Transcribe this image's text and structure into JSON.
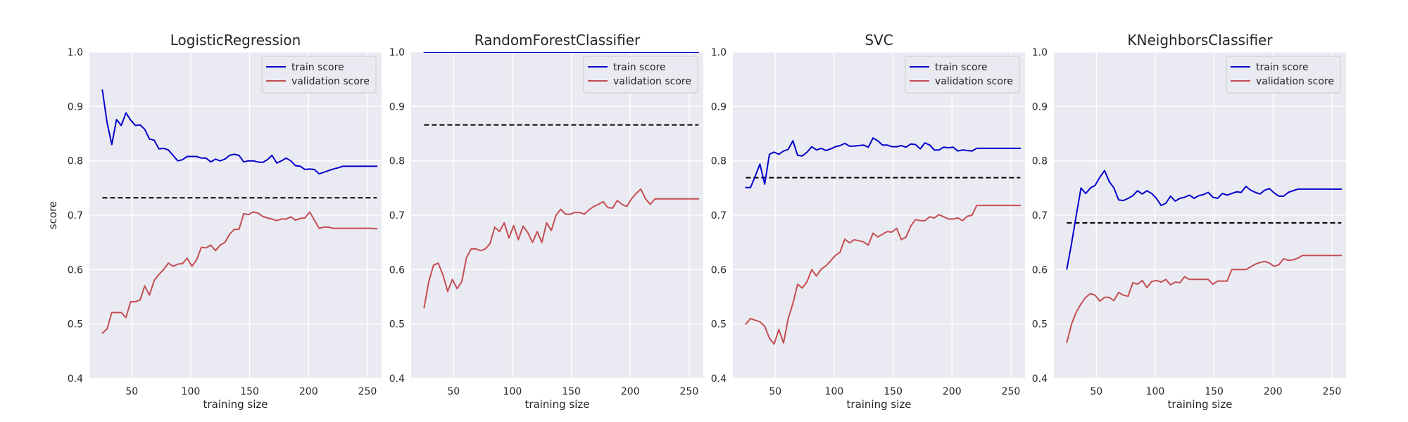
{
  "chart_data": [
    {
      "type": "line",
      "title": "LogisticRegression",
      "xlabel": "training size",
      "ylabel": "score",
      "xlim": [
        14,
        262
      ],
      "ylim": [
        0.4,
        1.0
      ],
      "xticks": [
        50,
        100,
        150,
        200,
        250
      ],
      "yticks": [
        0.4,
        0.5,
        0.6,
        0.7,
        0.8,
        0.9,
        1.0
      ],
      "legend_location": "upper-right",
      "grid": true,
      "reference_line": {
        "y": 0.732,
        "x_range": [
          25,
          258
        ],
        "style": "dashed",
        "color": "#000000"
      },
      "series": [
        {
          "name": "train score",
          "color": "#0000cc",
          "x": [
            25,
            29,
            33,
            37,
            41,
            45,
            49,
            53,
            57,
            61,
            65,
            69,
            73,
            77,
            81,
            85,
            89,
            93,
            97,
            101,
            105,
            109,
            113,
            117,
            121,
            125,
            129,
            133,
            137,
            141,
            145,
            149,
            153,
            157,
            161,
            165,
            169,
            173,
            177,
            181,
            185,
            189,
            193,
            197,
            201,
            205,
            209,
            213,
            217,
            221,
            225,
            229,
            233,
            237,
            241,
            245,
            249,
            253,
            258
          ],
          "y": [
            0.93,
            0.87,
            0.83,
            0.876,
            0.865,
            0.888,
            0.875,
            0.865,
            0.866,
            0.858,
            0.84,
            0.838,
            0.822,
            0.823,
            0.82,
            0.81,
            0.8,
            0.802,
            0.808,
            0.808,
            0.808,
            0.805,
            0.805,
            0.798,
            0.803,
            0.8,
            0.803,
            0.81,
            0.812,
            0.81,
            0.798,
            0.8,
            0.8,
            0.798,
            0.797,
            0.802,
            0.81,
            0.796,
            0.8,
            0.805,
            0.8,
            0.791,
            0.79,
            0.784,
            0.785,
            0.784,
            0.776,
            0.779,
            0.782,
            0.785,
            0.787,
            0.79,
            0.79,
            0.79,
            0.79,
            0.79,
            0.79,
            0.79,
            0.79
          ]
        },
        {
          "name": "validation score",
          "color": "#c44e52",
          "x": [
            25,
            29,
            33,
            37,
            41,
            45,
            49,
            53,
            57,
            61,
            65,
            69,
            73,
            77,
            81,
            85,
            89,
            93,
            97,
            101,
            105,
            109,
            113,
            117,
            121,
            125,
            129,
            133,
            137,
            141,
            145,
            149,
            153,
            157,
            161,
            165,
            169,
            173,
            177,
            181,
            185,
            189,
            193,
            197,
            201,
            205,
            209,
            213,
            217,
            221,
            225,
            229,
            233,
            237,
            241,
            245,
            249,
            253,
            258
          ],
          "y": [
            0.483,
            0.491,
            0.521,
            0.521,
            0.521,
            0.512,
            0.541,
            0.541,
            0.544,
            0.57,
            0.553,
            0.58,
            0.591,
            0.6,
            0.612,
            0.606,
            0.61,
            0.611,
            0.621,
            0.606,
            0.618,
            0.641,
            0.64,
            0.645,
            0.635,
            0.645,
            0.65,
            0.665,
            0.674,
            0.674,
            0.703,
            0.701,
            0.706,
            0.704,
            0.698,
            0.695,
            0.693,
            0.69,
            0.693,
            0.693,
            0.697,
            0.691,
            0.694,
            0.695,
            0.706,
            0.691,
            0.676,
            0.678,
            0.678,
            0.676,
            0.676,
            0.676,
            0.676,
            0.676,
            0.676,
            0.676,
            0.676,
            0.676,
            0.675
          ]
        }
      ]
    },
    {
      "type": "line",
      "title": "RandomForestClassifier",
      "xlabel": "training size",
      "ylabel": "",
      "xlim": [
        14,
        262
      ],
      "ylim": [
        0.4,
        1.0
      ],
      "xticks": [
        50,
        100,
        150,
        200,
        250
      ],
      "yticks": [
        0.4,
        0.5,
        0.6,
        0.7,
        0.8,
        0.9,
        1.0
      ],
      "legend_location": "upper-right",
      "grid": true,
      "reference_line": {
        "y": 0.866,
        "x_range": [
          25,
          258
        ],
        "style": "dashed",
        "color": "#000000"
      },
      "series": [
        {
          "name": "train score",
          "color": "#0000cc",
          "x": [
            25,
            258
          ],
          "y": [
            1.0,
            1.0
          ]
        },
        {
          "name": "validation score",
          "color": "#c44e52",
          "x": [
            25,
            29,
            33,
            37,
            41,
            45,
            49,
            53,
            57,
            61,
            65,
            69,
            73,
            77,
            81,
            85,
            89,
            93,
            97,
            101,
            105,
            109,
            113,
            117,
            121,
            125,
            129,
            133,
            137,
            141,
            145,
            149,
            153,
            157,
            161,
            165,
            169,
            173,
            177,
            181,
            185,
            189,
            193,
            197,
            201,
            205,
            209,
            213,
            217,
            221,
            225,
            229,
            233,
            237,
            241,
            245,
            249,
            253,
            258
          ],
          "y": [
            0.53,
            0.578,
            0.608,
            0.612,
            0.59,
            0.56,
            0.582,
            0.565,
            0.578,
            0.622,
            0.638,
            0.638,
            0.635,
            0.638,
            0.648,
            0.678,
            0.67,
            0.686,
            0.658,
            0.681,
            0.655,
            0.68,
            0.668,
            0.65,
            0.67,
            0.65,
            0.686,
            0.672,
            0.7,
            0.711,
            0.702,
            0.702,
            0.705,
            0.705,
            0.702,
            0.71,
            0.716,
            0.72,
            0.725,
            0.714,
            0.713,
            0.727,
            0.72,
            0.716,
            0.73,
            0.74,
            0.748,
            0.73,
            0.72,
            0.73,
            0.73,
            0.73,
            0.73,
            0.73,
            0.73,
            0.73,
            0.73,
            0.73,
            0.73
          ]
        }
      ]
    },
    {
      "type": "line",
      "title": "SVC",
      "xlabel": "training size",
      "ylabel": "",
      "xlim": [
        14,
        262
      ],
      "ylim": [
        0.4,
        1.0
      ],
      "xticks": [
        50,
        100,
        150,
        200,
        250
      ],
      "yticks": [
        0.4,
        0.5,
        0.6,
        0.7,
        0.8,
        0.9,
        1.0
      ],
      "legend_location": "upper-right",
      "grid": true,
      "reference_line": {
        "y": 0.769,
        "x_range": [
          25,
          258
        ],
        "style": "dashed",
        "color": "#000000"
      },
      "series": [
        {
          "name": "train score",
          "color": "#0000cc",
          "x": [
            25,
            29,
            33,
            37,
            41,
            45,
            49,
            53,
            57,
            61,
            65,
            69,
            73,
            77,
            81,
            85,
            89,
            93,
            97,
            101,
            105,
            109,
            113,
            117,
            121,
            125,
            129,
            133,
            137,
            141,
            145,
            149,
            153,
            157,
            161,
            165,
            169,
            173,
            177,
            181,
            185,
            189,
            193,
            197,
            201,
            205,
            209,
            213,
            217,
            221,
            225,
            229,
            233,
            237,
            241,
            245,
            249,
            253,
            258
          ],
          "y": [
            0.751,
            0.751,
            0.772,
            0.794,
            0.757,
            0.812,
            0.816,
            0.812,
            0.818,
            0.821,
            0.837,
            0.81,
            0.809,
            0.816,
            0.826,
            0.82,
            0.823,
            0.819,
            0.822,
            0.826,
            0.828,
            0.832,
            0.827,
            0.827,
            0.828,
            0.829,
            0.825,
            0.842,
            0.837,
            0.829,
            0.829,
            0.826,
            0.826,
            0.828,
            0.825,
            0.831,
            0.83,
            0.822,
            0.833,
            0.829,
            0.82,
            0.82,
            0.825,
            0.824,
            0.825,
            0.818,
            0.82,
            0.819,
            0.818,
            0.823,
            0.823,
            0.823,
            0.823,
            0.823,
            0.823,
            0.823,
            0.823,
            0.823,
            0.823
          ]
        },
        {
          "name": "validation score",
          "color": "#c44e52",
          "x": [
            25,
            29,
            33,
            37,
            41,
            45,
            49,
            53,
            57,
            61,
            65,
            69,
            73,
            77,
            81,
            85,
            89,
            93,
            97,
            101,
            105,
            109,
            113,
            117,
            121,
            125,
            129,
            133,
            137,
            141,
            145,
            149,
            153,
            157,
            161,
            165,
            169,
            173,
            177,
            181,
            185,
            189,
            193,
            197,
            201,
            205,
            209,
            213,
            217,
            221,
            225,
            229,
            233,
            237,
            241,
            245,
            249,
            253,
            258
          ],
          "y": [
            0.5,
            0.51,
            0.507,
            0.504,
            0.496,
            0.474,
            0.463,
            0.49,
            0.465,
            0.51,
            0.538,
            0.573,
            0.566,
            0.578,
            0.6,
            0.588,
            0.601,
            0.607,
            0.616,
            0.626,
            0.632,
            0.656,
            0.649,
            0.655,
            0.653,
            0.651,
            0.645,
            0.667,
            0.66,
            0.665,
            0.67,
            0.669,
            0.676,
            0.655,
            0.66,
            0.68,
            0.692,
            0.69,
            0.69,
            0.697,
            0.695,
            0.701,
            0.697,
            0.693,
            0.693,
            0.695,
            0.69,
            0.698,
            0.7,
            0.718,
            0.718,
            0.718,
            0.718,
            0.718,
            0.718,
            0.718,
            0.718,
            0.718,
            0.718
          ]
        }
      ]
    },
    {
      "type": "line",
      "title": "KNeighborsClassifier",
      "xlabel": "training size",
      "ylabel": "",
      "xlim": [
        14,
        262
      ],
      "ylim": [
        0.4,
        1.0
      ],
      "xticks": [
        50,
        100,
        150,
        200,
        250
      ],
      "yticks": [
        0.4,
        0.5,
        0.6,
        0.7,
        0.8,
        0.9,
        1.0
      ],
      "legend_location": "upper-right",
      "grid": true,
      "reference_line": {
        "y": 0.686,
        "x_range": [
          25,
          258
        ],
        "style": "dashed",
        "color": "#000000"
      },
      "series": [
        {
          "name": "train score",
          "color": "#0000cc",
          "x": [
            25,
            29,
            33,
            37,
            41,
            45,
            49,
            53,
            57,
            61,
            65,
            69,
            73,
            77,
            81,
            85,
            89,
            93,
            97,
            101,
            105,
            109,
            113,
            117,
            121,
            125,
            129,
            133,
            137,
            141,
            145,
            149,
            153,
            157,
            161,
            165,
            169,
            173,
            177,
            181,
            185,
            189,
            193,
            197,
            201,
            205,
            209,
            213,
            217,
            221,
            225,
            229,
            233,
            237,
            241,
            245,
            249,
            253,
            258
          ],
          "y": [
            0.601,
            0.648,
            0.7,
            0.75,
            0.74,
            0.75,
            0.755,
            0.77,
            0.782,
            0.762,
            0.75,
            0.728,
            0.727,
            0.731,
            0.736,
            0.745,
            0.739,
            0.745,
            0.74,
            0.731,
            0.718,
            0.722,
            0.735,
            0.726,
            0.731,
            0.733,
            0.737,
            0.731,
            0.736,
            0.738,
            0.742,
            0.733,
            0.731,
            0.74,
            0.737,
            0.74,
            0.743,
            0.742,
            0.753,
            0.746,
            0.742,
            0.739,
            0.746,
            0.749,
            0.741,
            0.735,
            0.735,
            0.742,
            0.745,
            0.748,
            0.748,
            0.748,
            0.748,
            0.748,
            0.748,
            0.748,
            0.748,
            0.748,
            0.748
          ]
        },
        {
          "name": "validation score",
          "color": "#c44e52",
          "x": [
            25,
            29,
            33,
            37,
            41,
            45,
            49,
            53,
            57,
            61,
            65,
            69,
            73,
            77,
            81,
            85,
            89,
            93,
            97,
            101,
            105,
            109,
            113,
            117,
            121,
            125,
            129,
            133,
            137,
            141,
            145,
            149,
            153,
            157,
            161,
            165,
            169,
            173,
            177,
            181,
            185,
            189,
            193,
            197,
            201,
            205,
            209,
            213,
            217,
            221,
            225,
            229,
            233,
            237,
            241,
            245,
            249,
            253,
            258
          ],
          "y": [
            0.466,
            0.5,
            0.522,
            0.537,
            0.549,
            0.556,
            0.553,
            0.542,
            0.549,
            0.549,
            0.543,
            0.558,
            0.553,
            0.551,
            0.576,
            0.573,
            0.58,
            0.567,
            0.578,
            0.58,
            0.577,
            0.582,
            0.572,
            0.577,
            0.576,
            0.587,
            0.582,
            0.582,
            0.582,
            0.582,
            0.582,
            0.573,
            0.579,
            0.579,
            0.579,
            0.6,
            0.6,
            0.6,
            0.6,
            0.605,
            0.61,
            0.613,
            0.615,
            0.612,
            0.606,
            0.609,
            0.62,
            0.617,
            0.618,
            0.621,
            0.626,
            0.626,
            0.626,
            0.626,
            0.626,
            0.626,
            0.626,
            0.626,
            0.626
          ]
        }
      ]
    }
  ]
}
